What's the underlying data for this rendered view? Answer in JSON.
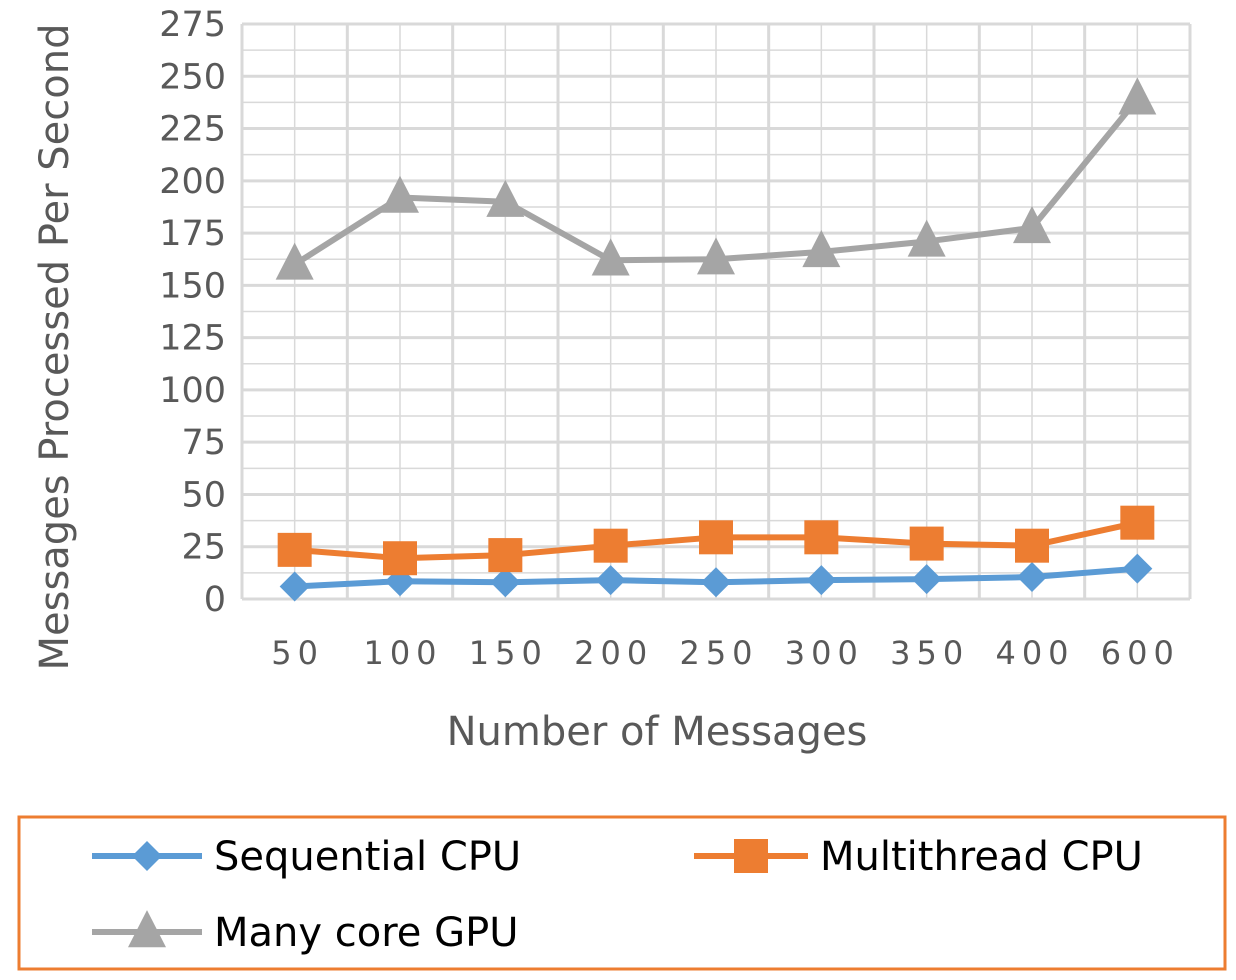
{
  "chart_data": {
    "type": "line",
    "xlabel": "Number of Messages",
    "ylabel": "Messages Processed Per Second",
    "categories": [
      "50",
      "100",
      "150",
      "200",
      "250",
      "300",
      "350",
      "400",
      "600"
    ],
    "y_ticks": [
      "0",
      "25",
      "50",
      "75",
      "100",
      "125",
      "150",
      "175",
      "200",
      "225",
      "250",
      "275"
    ],
    "ylim": [
      0,
      275
    ],
    "grid": true,
    "legend_position": "bottom",
    "series": [
      {
        "name": "Sequential CPU",
        "marker": "diamond",
        "color": "#5B9BD5",
        "values": [
          6,
          8.5,
          8,
          9,
          8,
          9,
          9.5,
          10.5,
          14.5
        ]
      },
      {
        "name": "Multithread CPU",
        "marker": "square",
        "color": "#ED7D31",
        "values": [
          23.5,
          19.5,
          21,
          25.5,
          29.5,
          29.5,
          26.5,
          25.5,
          36.5
        ]
      },
      {
        "name": "Many core GPU",
        "marker": "triangle",
        "color": "#A5A5A5",
        "values": [
          160,
          192,
          190,
          162,
          162.5,
          166,
          171,
          177.5,
          239
        ]
      }
    ]
  },
  "colors": {
    "axis_text": "#595959",
    "grid": "#D9D9D9",
    "legend_border": "#ED7D31"
  }
}
